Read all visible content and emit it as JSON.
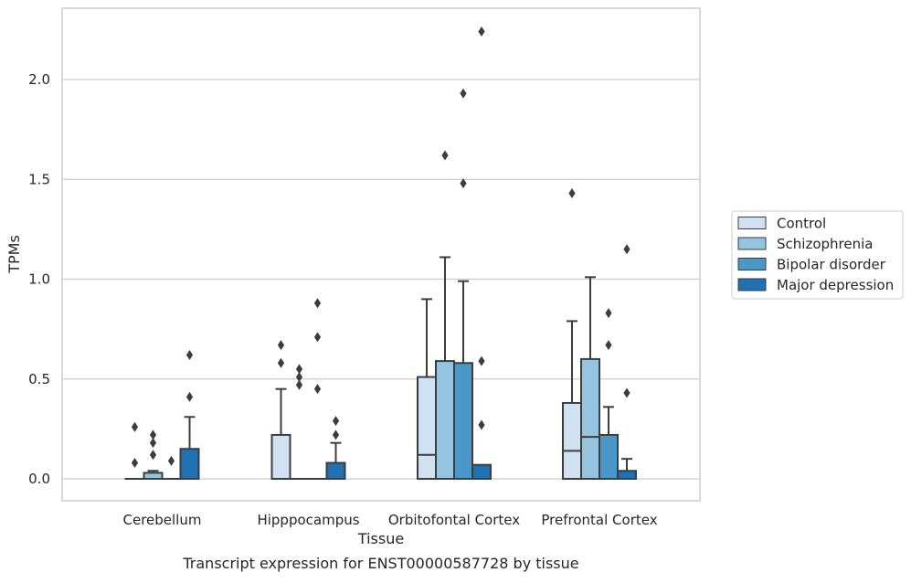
{
  "chart_data": {
    "type": "box",
    "xlabel": "Tissue",
    "ylabel": "TPMs",
    "caption": "Transcript expression for ENST00000587728 by tissue",
    "ylim": [
      -0.11,
      2.35
    ],
    "yticks": [
      0.0,
      0.5,
      1.0,
      1.5,
      2.0
    ],
    "ytick_labels": [
      "0.0",
      "0.5",
      "1.0",
      "1.5",
      "2.0"
    ],
    "grid": "horizontal",
    "legend_position": "right",
    "categories": [
      "Cerebellum",
      "Hipppocampus",
      "Orbitofontal Cortex",
      "Prefrontal Cortex"
    ],
    "series": [
      {
        "name": "Control",
        "color": "#d0e1f2",
        "boxes": [
          {
            "whislo": 0,
            "q1": 0,
            "med": 0,
            "q3": 0,
            "whishi": 0,
            "fliers": [
              0.08,
              0.26
            ]
          },
          {
            "whislo": 0,
            "q1": 0,
            "med": 0,
            "q3": 0.22,
            "whishi": 0.45,
            "fliers": [
              0.58,
              0.67
            ]
          },
          {
            "whislo": 0,
            "q1": 0,
            "med": 0.12,
            "q3": 0.51,
            "whishi": 0.9,
            "fliers": []
          },
          {
            "whislo": 0,
            "q1": 0,
            "med": 0.14,
            "q3": 0.38,
            "whishi": 0.79,
            "fliers": [
              1.43
            ]
          }
        ]
      },
      {
        "name": "Schizophrenia",
        "color": "#94c4df",
        "boxes": [
          {
            "whislo": 0,
            "q1": 0,
            "med": 0,
            "q3": 0.03,
            "whishi": 0.04,
            "fliers": [
              0.12,
              0.18,
              0.22
            ]
          },
          {
            "whislo": 0,
            "q1": 0,
            "med": 0,
            "q3": 0,
            "whishi": 0,
            "fliers": [
              0.47,
              0.51,
              0.55
            ]
          },
          {
            "whislo": 0,
            "q1": 0,
            "med": 0,
            "q3": 0.59,
            "whishi": 1.11,
            "fliers": [
              1.62
            ]
          },
          {
            "whislo": 0,
            "q1": 0,
            "med": 0.21,
            "q3": 0.6,
            "whishi": 1.01,
            "fliers": []
          }
        ]
      },
      {
        "name": "Bipolar disorder",
        "color": "#4a98c9",
        "boxes": [
          {
            "whislo": 0,
            "q1": 0,
            "med": 0,
            "q3": 0,
            "whishi": 0,
            "fliers": [
              0.09
            ]
          },
          {
            "whislo": 0,
            "q1": 0,
            "med": 0,
            "q3": 0,
            "whishi": 0,
            "fliers": [
              0.45,
              0.71,
              0.88
            ]
          },
          {
            "whislo": 0,
            "q1": 0,
            "med": 0,
            "q3": 0.58,
            "whishi": 0.99,
            "fliers": [
              1.48,
              1.93
            ]
          },
          {
            "whislo": 0,
            "q1": 0,
            "med": 0,
            "q3": 0.22,
            "whishi": 0.36,
            "fliers": [
              0.67,
              0.83
            ]
          }
        ]
      },
      {
        "name": "Major depression",
        "color": "#2070b4",
        "boxes": [
          {
            "whislo": 0,
            "q1": 0,
            "med": 0,
            "q3": 0.15,
            "whishi": 0.31,
            "fliers": [
              0.41,
              0.62
            ]
          },
          {
            "whislo": 0,
            "q1": 0,
            "med": 0,
            "q3": 0.08,
            "whishi": 0.18,
            "fliers": [
              0.22,
              0.29
            ]
          },
          {
            "whislo": 0,
            "q1": 0,
            "med": 0,
            "q3": 0.07,
            "whishi": 0.07,
            "fliers": [
              0.27,
              0.59,
              2.24
            ]
          },
          {
            "whislo": 0,
            "q1": 0,
            "med": 0,
            "q3": 0.04,
            "whishi": 0.1,
            "fliers": [
              0.43,
              1.15
            ]
          }
        ]
      }
    ]
  },
  "colors": {
    "grid": "#cccccc",
    "frame": "#cccccc",
    "edge": "#3d3d3d",
    "background": "#ffffff"
  }
}
